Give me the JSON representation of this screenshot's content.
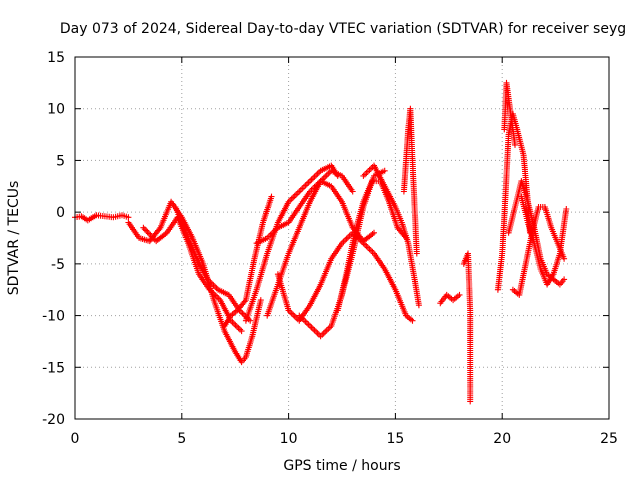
{
  "chart_data": {
    "type": "scatter",
    "title": "Day 073 of 2024, Sidereal Day-to-day VTEC variation (SDTVAR) for receiver seyg",
    "xlabel": "GPS time / hours",
    "ylabel": "SDTVAR / TECUs",
    "xlim": [
      0,
      25
    ],
    "ylim": [
      -20,
      15
    ],
    "xticks": [
      0,
      5,
      10,
      15,
      20,
      25
    ],
    "yticks": [
      -20,
      -15,
      -10,
      -5,
      0,
      5,
      10,
      15
    ],
    "grid": true,
    "marker": "+",
    "color": "#ff0000",
    "series": [
      {
        "name": "arc-1",
        "x": [
          0.0,
          0.3,
          0.6,
          1.0,
          1.4,
          1.8,
          2.2,
          2.5
        ],
        "y": [
          -0.5,
          -0.4,
          -0.8,
          -0.3,
          -0.4,
          -0.5,
          -0.3,
          -0.5
        ]
      },
      {
        "name": "arc-2",
        "x": [
          2.5,
          3.0,
          3.5,
          4.0,
          4.5,
          5.0,
          5.5,
          6.0,
          6.5,
          7.0,
          7.5,
          7.8,
          8.0,
          8.3,
          8.7
        ],
        "y": [
          -1.0,
          -2.5,
          -2.8,
          -1.5,
          1.0,
          -0.5,
          -2.5,
          -5.0,
          -8.5,
          -11.5,
          -13.5,
          -14.5,
          -14.0,
          -12.0,
          -8.5
        ]
      },
      {
        "name": "arc-3",
        "x": [
          3.2,
          3.8,
          4.3,
          4.8,
          5.3,
          5.8,
          6.3,
          6.8,
          7.3,
          7.8
        ],
        "y": [
          -1.5,
          -2.8,
          -2.0,
          -0.5,
          -3.0,
          -6.0,
          -7.5,
          -8.5,
          -10.5,
          -11.5
        ]
      },
      {
        "name": "arc-4",
        "x": [
          4.7,
          5.2,
          5.7,
          6.2,
          6.7,
          7.2,
          7.7,
          8.2
        ],
        "y": [
          0.5,
          -2.0,
          -4.5,
          -6.5,
          -7.5,
          -8.0,
          -9.5,
          -10.5
        ]
      },
      {
        "name": "arc-5",
        "x": [
          7.0,
          7.3,
          7.6,
          8.0,
          8.4,
          8.8,
          9.2
        ],
        "y": [
          -11.0,
          -10.0,
          -9.5,
          -8.5,
          -4.5,
          -1.0,
          1.5
        ]
      },
      {
        "name": "arc-6",
        "x": [
          8.0,
          8.5,
          9.0,
          9.5,
          10.0,
          10.5,
          11.0,
          11.5,
          12.0,
          12.3
        ],
        "y": [
          -10.5,
          -7.5,
          -4.0,
          -1.0,
          1.0,
          2.0,
          3.0,
          4.0,
          4.5,
          3.5
        ]
      },
      {
        "name": "arc-7",
        "x": [
          8.5,
          9.0,
          9.5,
          10.0,
          10.5,
          11.0,
          11.5,
          12.0,
          12.5,
          13.0,
          13.5,
          14.0
        ],
        "y": [
          -3.0,
          -2.5,
          -1.5,
          -1.0,
          0.5,
          2.0,
          3.0,
          2.5,
          1.0,
          -1.5,
          -2.8,
          -2.0
        ]
      },
      {
        "name": "arc-8",
        "x": [
          9.0,
          9.5,
          10.0,
          10.5,
          11.0,
          11.5,
          12.0,
          12.5,
          13.0
        ],
        "y": [
          -10.0,
          -7.0,
          -4.0,
          -1.5,
          1.0,
          3.0,
          4.0,
          3.5,
          2.0
        ]
      },
      {
        "name": "arc-9",
        "x": [
          9.5,
          10.0,
          10.5,
          11.0,
          11.5,
          12.0,
          12.5,
          13.0,
          13.5,
          14.0,
          14.5,
          15.0,
          15.5,
          15.8
        ],
        "y": [
          -6.0,
          -9.5,
          -10.5,
          -9.0,
          -7.0,
          -4.5,
          -3.0,
          -2.0,
          -3.0,
          -4.0,
          -5.5,
          -7.5,
          -10.0,
          -10.5
        ]
      },
      {
        "name": "arc-10",
        "x": [
          10.5,
          11.0,
          11.5,
          12.0,
          12.5,
          13.0,
          13.5,
          14.0,
          14.5
        ],
        "y": [
          -10.0,
          -11.0,
          -12.0,
          -11.0,
          -8.0,
          -4.0,
          0.5,
          3.5,
          4.0
        ]
      },
      {
        "name": "arc-11",
        "x": [
          12.3,
          12.7,
          13.1,
          13.5,
          13.9,
          14.3,
          14.7,
          15.1,
          15.5
        ],
        "y": [
          -9.5,
          -6.0,
          -2.0,
          1.0,
          3.0,
          3.0,
          1.0,
          -1.5,
          -2.5
        ]
      },
      {
        "name": "arc-12",
        "x": [
          13.5,
          14.0,
          14.5,
          15.0,
          15.3,
          15.6,
          15.9,
          16.1
        ],
        "y": [
          3.5,
          4.5,
          2.5,
          0.5,
          -1.0,
          -3.0,
          -6.5,
          -9.0
        ]
      },
      {
        "name": "arc-13",
        "x": [
          15.4,
          15.5,
          15.6,
          15.7,
          15.8,
          15.9,
          16.0
        ],
        "y": [
          2.0,
          5.0,
          8.0,
          10.0,
          5.0,
          0.5,
          -4.0
        ]
      },
      {
        "name": "arc-14",
        "x": [
          17.1,
          17.4,
          17.7,
          18.0
        ],
        "y": [
          -8.8,
          -8.0,
          -8.5,
          -8.0
        ]
      },
      {
        "name": "arc-15",
        "x": [
          18.2,
          18.3,
          18.4,
          18.5,
          18.5,
          18.5,
          18.5,
          18.5
        ],
        "y": [
          -5.0,
          -4.5,
          -4.0,
          -9.5,
          -10.5,
          -12.8,
          -15.5,
          -18.3
        ]
      },
      {
        "name": "arc-16",
        "x": [
          19.8,
          20.0,
          20.1,
          20.2,
          20.3,
          20.5,
          20.7,
          21.0,
          21.2,
          21.3
        ],
        "y": [
          -7.5,
          -4.0,
          -0.5,
          3.5,
          7.5,
          9.5,
          8.0,
          5.5,
          1.0,
          -2.0
        ]
      },
      {
        "name": "arc-17",
        "x": [
          20.1,
          20.2,
          20.3,
          20.4,
          20.5,
          20.6
        ],
        "y": [
          8.0,
          12.5,
          11.0,
          9.5,
          8.0,
          6.5
        ]
      },
      {
        "name": "arc-18",
        "x": [
          20.3,
          20.6,
          20.9,
          21.2,
          21.5,
          21.8,
          22.1,
          22.4,
          22.7,
          22.9
        ],
        "y": [
          -2.0,
          0.5,
          3.0,
          1.0,
          -1.5,
          -4.5,
          -6.0,
          -6.5,
          -7.0,
          -6.5
        ]
      },
      {
        "name": "arc-19",
        "x": [
          20.5,
          20.8,
          21.1,
          21.4,
          21.7,
          22.0,
          22.3,
          22.6,
          22.9
        ],
        "y": [
          -7.5,
          -8.0,
          -5.0,
          -2.0,
          0.5,
          0.5,
          -1.5,
          -3.0,
          -4.5
        ]
      },
      {
        "name": "arc-20",
        "x": [
          20.9,
          21.2,
          21.5,
          21.8,
          22.1,
          22.4,
          22.7,
          23.0
        ],
        "y": [
          1.5,
          -1.0,
          -3.0,
          -5.5,
          -7.0,
          -6.0,
          -4.0,
          0.3
        ]
      }
    ]
  }
}
